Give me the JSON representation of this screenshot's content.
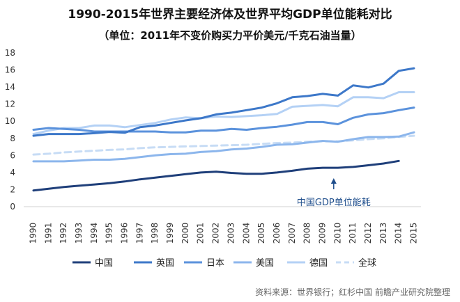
{
  "header": {
    "title": "1990-2015年世界主要经济体及世界平均GDP单位能耗对比",
    "subtitle": "（单位：2011年不变价购买力平价美元/千克石油当量）"
  },
  "footer": {
    "source": "资料来源：世界银行；红杉中国 前瞻产业研究院整理"
  },
  "chart_data": {
    "type": "line",
    "title": "1990-2015年世界主要经济体及世界平均GDP单位能耗对比",
    "subtitle": "（单位：2011年不变价购买力平价美元/千克石油当量）",
    "xlabel": "",
    "ylabel": "",
    "x": [
      "1990",
      "1991",
      "1992",
      "1993",
      "1994",
      "1995",
      "1996",
      "1997",
      "1998",
      "1999",
      "2000",
      "2001",
      "2002",
      "2003",
      "2004",
      "2005",
      "2006",
      "2007",
      "2008",
      "2009",
      "2010",
      "2011",
      "2012",
      "2013",
      "2014",
      "2015"
    ],
    "ylim": [
      0,
      18
    ],
    "yticks": [
      0,
      2,
      4,
      6,
      8,
      10,
      12,
      14,
      16,
      18
    ],
    "grid": false,
    "legend": "bottom",
    "annotation": {
      "text": "中国GDP单位能耗",
      "x": "2010",
      "y": 4.55
    },
    "series": [
      {
        "name": "中国",
        "color": "#1f3f7a",
        "dash": false,
        "width": 3,
        "values": [
          1.9,
          2.1,
          2.3,
          2.45,
          2.6,
          2.75,
          2.95,
          3.2,
          3.4,
          3.6,
          3.8,
          4.0,
          4.1,
          3.95,
          3.85,
          3.85,
          4.0,
          4.2,
          4.45,
          4.55,
          4.55,
          4.65,
          4.85,
          5.05,
          5.35,
          null
        ]
      },
      {
        "name": "英国",
        "color": "#3d78c9",
        "dash": false,
        "width": 3,
        "values": [
          8.3,
          8.5,
          8.5,
          8.5,
          8.6,
          8.75,
          8.65,
          9.3,
          9.5,
          9.8,
          10.1,
          10.35,
          10.8,
          11.0,
          11.3,
          11.6,
          12.1,
          12.8,
          12.95,
          13.2,
          13.0,
          14.2,
          13.95,
          14.4,
          15.9,
          16.2
        ]
      },
      {
        "name": "日本",
        "color": "#5b92dc",
        "dash": false,
        "width": 3,
        "values": [
          9.0,
          9.2,
          9.1,
          9.0,
          8.8,
          8.8,
          8.8,
          8.8,
          8.8,
          8.7,
          8.7,
          8.9,
          8.9,
          9.1,
          9.0,
          9.2,
          9.35,
          9.6,
          9.9,
          9.9,
          9.65,
          10.4,
          10.8,
          10.95,
          11.3,
          11.6
        ]
      },
      {
        "name": "美国",
        "color": "#8cb6ec",
        "dash": false,
        "width": 3,
        "values": [
          5.3,
          5.3,
          5.3,
          5.4,
          5.5,
          5.5,
          5.6,
          5.8,
          6.0,
          6.15,
          6.2,
          6.4,
          6.5,
          6.7,
          6.8,
          7.0,
          7.25,
          7.3,
          7.5,
          7.7,
          7.6,
          7.9,
          8.15,
          8.15,
          8.2,
          8.7
        ]
      },
      {
        "name": "德国",
        "color": "#b4d1f5",
        "dash": false,
        "width": 3,
        "values": [
          8.5,
          8.9,
          9.2,
          9.2,
          9.5,
          9.5,
          9.3,
          9.55,
          9.8,
          10.2,
          10.45,
          10.35,
          10.55,
          10.5,
          10.6,
          10.7,
          10.85,
          11.7,
          11.8,
          11.9,
          11.75,
          12.8,
          12.8,
          12.7,
          13.4,
          13.4
        ]
      },
      {
        "name": "全球",
        "color": "#c7dcf5",
        "dash": true,
        "width": 3,
        "values": [
          6.1,
          6.2,
          6.35,
          6.45,
          6.55,
          6.65,
          6.7,
          6.85,
          6.95,
          7.0,
          7.05,
          7.1,
          7.15,
          7.2,
          7.25,
          7.35,
          7.45,
          7.5,
          7.6,
          7.65,
          7.65,
          7.75,
          7.9,
          8.0,
          8.15,
          8.3
        ]
      }
    ]
  }
}
